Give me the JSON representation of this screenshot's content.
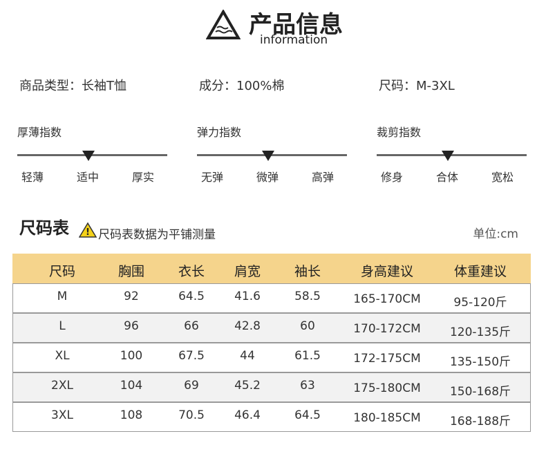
{
  "header": {
    "title": "产品信息",
    "subtitle": "information"
  },
  "attributes": [
    "商品类型：长袖T恤",
    "成分：100%棉",
    "尺码：M-3XL"
  ],
  "indices": [
    {
      "title": "厚薄指数",
      "labels": [
        "轻薄",
        "适中",
        "厚实"
      ]
    },
    {
      "title": "弹力指数",
      "labels": [
        "无弹",
        "微弹",
        "高弹"
      ]
    },
    {
      "title": "裁剪指数",
      "labels": [
        "修身",
        "合体",
        "宽松"
      ]
    }
  ],
  "size_table": {
    "title": "尺码表",
    "note": "尺码表数据为平铺测量",
    "unit": "单位:cm",
    "columns": [
      "尺码",
      "胸围",
      "衣长",
      "肩宽",
      "袖长",
      "身高建议",
      "体重建议"
    ],
    "rows": [
      [
        "M",
        "92",
        "64.5",
        "41.6",
        "58.5",
        "165-170CM",
        "95-120斤"
      ],
      [
        "L",
        "96",
        "66",
        "42.8",
        "60",
        "170-172CM",
        "120-135斤"
      ],
      [
        "XL",
        "100",
        "67.5",
        "44",
        "61.5",
        "172-175CM",
        "135-150斤"
      ],
      [
        "2XL",
        "104",
        "69",
        "45.2",
        "63",
        "175-180CM",
        "150-168斤"
      ],
      [
        "3XL",
        "108",
        "70.5",
        "46.4",
        "64.5",
        "180-185CM",
        "168-188斤"
      ]
    ]
  }
}
